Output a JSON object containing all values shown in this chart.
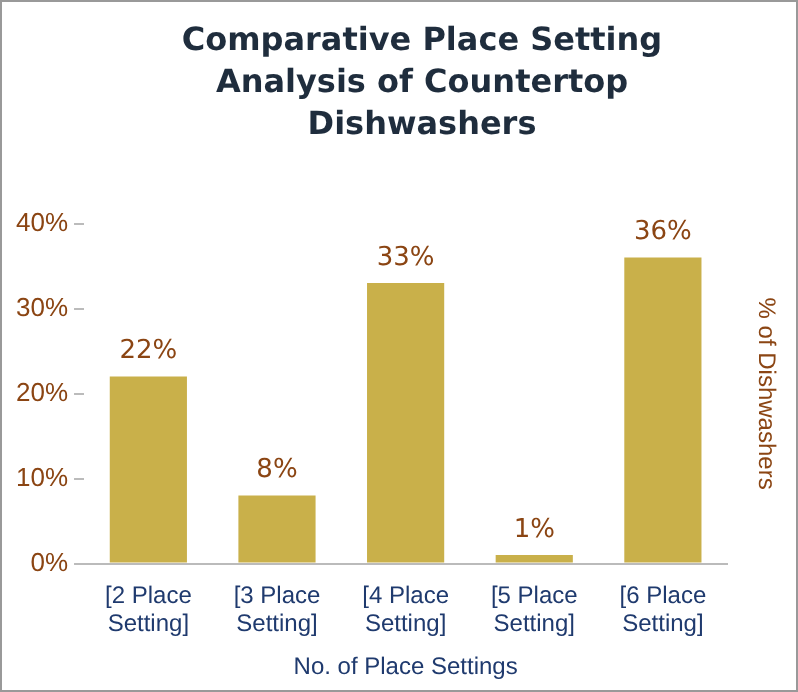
{
  "chart_data": {
    "type": "bar",
    "title": "Comparative Place Setting Analysis of Countertop Dishwashers",
    "xlabel": "No. of Place Settings",
    "ylabel": "% of Dishwashers",
    "categories": [
      "[2 Place Setting]",
      "[3 Place Setting]",
      "[4 Place Setting]",
      "[5 Place Setting]",
      "[6 Place Setting]"
    ],
    "values": [
      22,
      8,
      33,
      1,
      36
    ],
    "color": "#c9b04a",
    "value_labels": [
      "22%",
      "8%",
      "33%",
      "1%",
      "36%"
    ],
    "ylim": [
      0,
      40
    ],
    "yticks": [
      {
        "value": 0,
        "label": "0%"
      },
      {
        "value": 10,
        "label": "10%"
      },
      {
        "value": 20,
        "label": "20%"
      },
      {
        "value": 30,
        "label": "30%"
      },
      {
        "value": 40,
        "label": "40%"
      }
    ],
    "grid": false,
    "legend": false
  }
}
